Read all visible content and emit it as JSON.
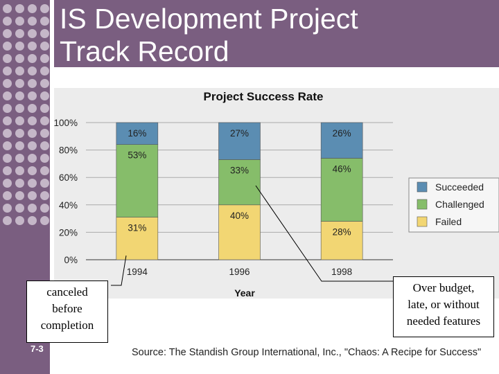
{
  "slide": {
    "title_lines": [
      "IS Development Project",
      "Track Record"
    ],
    "slide_number": "7-3",
    "source": "Source: The Standish Group International, Inc., \"Chaos: A Recipe for Success\""
  },
  "callouts": {
    "left_lines": [
      "canceled",
      "before",
      "completion"
    ],
    "right_lines": [
      "Over budget,",
      "late, or without",
      "needed features"
    ]
  },
  "colors": {
    "purple_band": "#7a5e80",
    "dot": "#c5b7c8",
    "succeeded": "#5b8db2",
    "challenged": "#86bd6a",
    "failed": "#f2d673",
    "chart_bg": "#ececec"
  },
  "chart_data": {
    "type": "bar",
    "stacked": true,
    "title": "Project Success Rate",
    "xlabel": "Year",
    "ylabel": "",
    "ylim": [
      0,
      100
    ],
    "yticks": [
      "0%",
      "20%",
      "40%",
      "60%",
      "80%",
      "100%"
    ],
    "categories": [
      "1994",
      "1996",
      "1998"
    ],
    "series": [
      {
        "name": "Failed",
        "color": "#f2d673",
        "values": [
          31,
          40,
          28
        ],
        "labels": [
          "31%",
          "40%",
          "28%"
        ]
      },
      {
        "name": "Challenged",
        "color": "#86bd6a",
        "values": [
          53,
          33,
          46
        ],
        "labels": [
          "53%",
          "33%",
          "46%"
        ]
      },
      {
        "name": "Succeeded",
        "color": "#5b8db2",
        "values": [
          16,
          27,
          26
        ],
        "labels": [
          "16%",
          "27%",
          "26%"
        ]
      }
    ],
    "legend": {
      "position": "right",
      "order": [
        "Succeeded",
        "Challenged",
        "Failed"
      ]
    },
    "grid": true
  }
}
